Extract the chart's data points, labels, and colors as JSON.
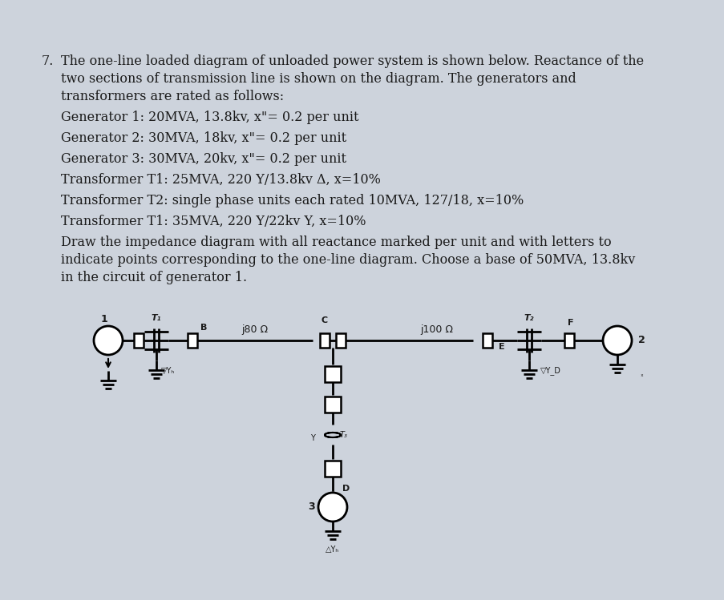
{
  "background_color": "#cdd3dc",
  "text_color": "#1a1a1a",
  "title_number": "7.",
  "line1": "The one-line loaded diagram of unloaded power system is shown below. Reactance of the",
  "line2": "two sections of transmission line is shown on the diagram. The generators and",
  "line3": "transformers are rated as follows:",
  "spec1": "Generator 1: 20MVA, 13.8kv, x\"= 0.2 per unit",
  "spec2": "Generator 2: 30MVA, 18kv, x\"= 0.2 per unit",
  "spec3": "Generator 3: 30MVA, 20kv, x\"= 0.2 per unit",
  "spec4": "Transformer T1: 25MVA, 220 Y/13.8kv Δ, x=10%",
  "spec5": "Transformer T2: single phase units each rated 10MVA, 127/18, x=10%",
  "spec6": "Transformer T1: 35MVA, 220 Y/22kv Y, x=10%",
  "para1": "Draw the impedance diagram with all reactance marked per unit and with letters to",
  "para2": "indicate points corresponding to the one-line diagram. Choose a base of 50MVA, 13.8kv",
  "para3": "in the circuit of generator 1.",
  "label_j80": "j80 Ω",
  "label_j100": "j100 Ω",
  "label_B": "B",
  "label_C": "C",
  "label_E": "E",
  "label_T1": "T₁",
  "label_T2": "T₂",
  "label_T3": "T₃",
  "label_Y": "Y",
  "label_D": "D",
  "label_1": "1",
  "label_2": "2",
  "label_3": "3"
}
